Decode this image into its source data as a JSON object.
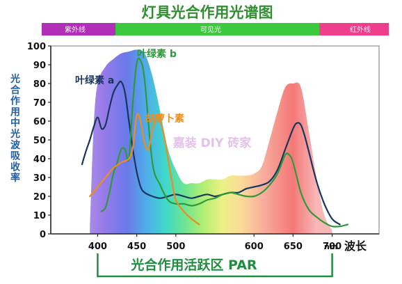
{
  "page": {
    "title": "灯具光合作用光谱图",
    "bands": [
      {
        "label": "紫外线",
        "color": "#b12fb6",
        "range": [
          340,
          400
        ]
      },
      {
        "label": "可见光",
        "color": "#3dc93d",
        "range": [
          400,
          700
        ]
      },
      {
        "label": "红外线",
        "color": "#ef3f8c",
        "range": [
          700,
          760
        ]
      }
    ],
    "par_label": "光合作用活跃区 PAR",
    "x_unit": "nm",
    "watermark": "嘉装 DIY 砖家"
  },
  "chart_data": {
    "type": "line",
    "title": "灯具光合作用光谱图",
    "xlabel": "波长",
    "ylabel": "光合作用中光波吸收率",
    "xlim": [
      340,
      760
    ],
    "ylim": [
      0,
      100
    ],
    "x_ticks": [
      400,
      450,
      500,
      600,
      650,
      700
    ],
    "y_ticks": [
      0,
      10,
      20,
      30,
      40,
      50,
      60,
      70,
      80,
      90,
      100
    ],
    "grid": false,
    "par_range": [
      400,
      700
    ],
    "action_spectrum": {
      "x": [
        390,
        395,
        400,
        410,
        420,
        430,
        440,
        450,
        460,
        470,
        480,
        490,
        500,
        510,
        520,
        530,
        540,
        550,
        560,
        570,
        580,
        590,
        600,
        610,
        620,
        630,
        640,
        650,
        660,
        670,
        680,
        690,
        700
      ],
      "y": [
        3,
        58,
        80,
        89,
        93,
        96,
        97,
        98,
        96,
        84,
        65,
        45,
        34,
        27,
        27,
        27,
        29,
        29,
        29,
        31,
        31,
        31,
        32,
        36,
        50,
        65,
        78,
        80,
        78,
        55,
        30,
        10,
        2
      ]
    },
    "series": [
      {
        "name": "叶绿素 a",
        "color": "#16365e",
        "x": [
          380,
          385,
          390,
          395,
          400,
          405,
          410,
          415,
          420,
          425,
          430,
          435,
          440,
          445,
          450,
          455,
          460,
          470,
          480,
          490,
          500,
          510,
          520,
          530,
          540,
          550,
          560,
          570,
          580,
          590,
          600,
          610,
          620,
          630,
          640,
          650,
          655,
          660,
          665,
          670,
          680,
          690,
          700,
          710
        ],
        "y": [
          37,
          44,
          50,
          57,
          62,
          56,
          58,
          67,
          75,
          79,
          81,
          75,
          60,
          45,
          33,
          25,
          22,
          20,
          19,
          20,
          21,
          20,
          19,
          20,
          21,
          20,
          21,
          22,
          22,
          24,
          25,
          26,
          28,
          34,
          45,
          56,
          59,
          58,
          52,
          44,
          28,
          16,
          8,
          5
        ]
      },
      {
        "name": "叶绿素 b",
        "color": "#2e9a3a",
        "x": [
          405,
          410,
          415,
          420,
          425,
          430,
          435,
          440,
          445,
          450,
          455,
          460,
          470,
          480,
          490,
          500,
          510,
          520,
          530,
          540,
          550,
          560,
          570,
          580,
          590,
          600,
          610,
          620,
          630,
          640,
          645,
          650,
          660,
          670,
          680,
          690,
          700,
          710,
          720
        ],
        "y": [
          12,
          14,
          22,
          32,
          38,
          45,
          45,
          40,
          70,
          91,
          92,
          82,
          38,
          26,
          18,
          16,
          16,
          15,
          16,
          18,
          19,
          21,
          22,
          21,
          20,
          20,
          22,
          26,
          32,
          42,
          42,
          38,
          22,
          13,
          9,
          6,
          4,
          4,
          5
        ]
      },
      {
        "name": "胡萝卜素",
        "color": "#ee8c1e",
        "x": [
          390,
          400,
          410,
          420,
          430,
          440,
          445,
          450,
          455,
          460,
          465,
          470,
          475,
          480,
          485,
          490,
          495,
          500,
          510,
          520,
          530
        ],
        "y": [
          20,
          25,
          30,
          35,
          38,
          40,
          46,
          63,
          60,
          48,
          45,
          55,
          62,
          60,
          52,
          40,
          28,
          18,
          12,
          8,
          5
        ]
      }
    ],
    "labels": [
      {
        "text": "叶绿素 b",
        "series": 1
      },
      {
        "text": "叶绿素 a",
        "series": 0
      },
      {
        "text": "胡萝卜素",
        "series": 2
      }
    ]
  }
}
